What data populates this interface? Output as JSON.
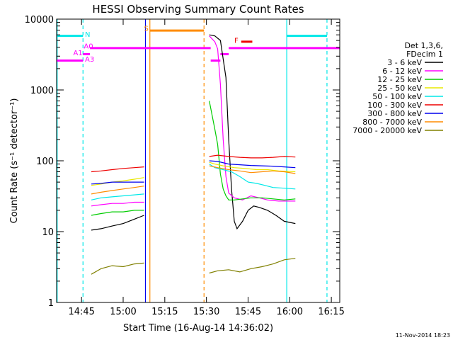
{
  "chart_data": {
    "type": "line",
    "title": "HESSI Observing Summary Count Rates",
    "xlabel": "Start Time (16-Aug-14 14:36:02)",
    "ylabel": "Count Rate (s⁻¹ detector⁻¹)",
    "footer_date": "11-Nov-2014 18:23",
    "x_unit": "minutes after 14:36:02",
    "xlim": [
      0,
      102
    ],
    "ylim": [
      1,
      10000
    ],
    "y_scale": "log",
    "grid": false,
    "legend_position": "right",
    "legend_header": [
      "Det 1,3,6,",
      "FDecim 1"
    ],
    "x_ticks": [
      {
        "label": "14:45",
        "value": 8.97
      },
      {
        "label": "15:00",
        "value": 23.97
      },
      {
        "label": "15:15",
        "value": 38.97
      },
      {
        "label": "15:30",
        "value": 53.97
      },
      {
        "label": "15:45",
        "value": 68.97
      },
      {
        "label": "16:00",
        "value": 83.97
      },
      {
        "label": "16:15",
        "value": 98.97
      }
    ],
    "y_ticks": [
      {
        "label": "1",
        "value": 1
      },
      {
        "label": "10",
        "value": 10
      },
      {
        "label": "100",
        "value": 100
      },
      {
        "label": "1000",
        "value": 1000
      },
      {
        "label": "10000",
        "value": 10000
      }
    ],
    "series": [
      {
        "name": "3 - 6 keV",
        "color": "#000000",
        "values": [
          [
            12.5,
            10.5
          ],
          [
            16,
            11
          ],
          [
            20,
            12
          ],
          [
            24,
            13
          ],
          [
            28,
            15
          ],
          [
            31.5,
            17
          ],
          [
            55,
            6000
          ],
          [
            57,
            5800
          ],
          [
            59,
            5000
          ],
          [
            61,
            1500
          ],
          [
            62,
            200
          ],
          [
            63,
            40
          ],
          [
            64,
            14
          ],
          [
            65,
            11
          ],
          [
            67,
            14
          ],
          [
            69,
            20
          ],
          [
            71,
            23
          ],
          [
            73,
            22
          ],
          [
            76,
            20
          ],
          [
            79,
            17
          ],
          [
            82,
            14
          ],
          [
            86,
            13
          ]
        ]
      },
      {
        "name": "6 - 12 keV",
        "color": "#ff00ff",
        "values": [
          [
            12.5,
            23
          ],
          [
            16,
            24
          ],
          [
            20,
            25
          ],
          [
            24,
            25
          ],
          [
            28,
            26
          ],
          [
            31.5,
            26
          ],
          [
            55,
            5800
          ],
          [
            57,
            4800
          ],
          [
            58,
            3800
          ],
          [
            59,
            1200
          ],
          [
            60,
            200
          ],
          [
            61,
            60
          ],
          [
            62,
            35
          ],
          [
            64,
            30
          ],
          [
            67,
            28
          ],
          [
            70,
            32
          ],
          [
            73,
            30
          ],
          [
            76,
            28
          ],
          [
            80,
            27
          ],
          [
            86,
            27
          ]
        ]
      },
      {
        "name": "12 - 25 keV",
        "color": "#00cc00",
        "values": [
          [
            12.5,
            17
          ],
          [
            16,
            18
          ],
          [
            20,
            19
          ],
          [
            24,
            19
          ],
          [
            28,
            20
          ],
          [
            31.5,
            20
          ],
          [
            55,
            700
          ],
          [
            57,
            280
          ],
          [
            58,
            170
          ],
          [
            59,
            65
          ],
          [
            60,
            40
          ],
          [
            61,
            32
          ],
          [
            62,
            28
          ],
          [
            64,
            28
          ],
          [
            67,
            29
          ],
          [
            70,
            30
          ],
          [
            74,
            30
          ],
          [
            78,
            29
          ],
          [
            82,
            28
          ],
          [
            86,
            29
          ]
        ]
      },
      {
        "name": "25 - 50 keV",
        "color": "#e8e800",
        "values": [
          [
            12.5,
            45
          ],
          [
            16,
            47
          ],
          [
            20,
            50
          ],
          [
            24,
            52
          ],
          [
            28,
            55
          ],
          [
            31.5,
            58
          ],
          [
            55,
            95
          ],
          [
            57,
            90
          ],
          [
            60,
            85
          ],
          [
            64,
            80
          ],
          [
            68,
            78
          ],
          [
            72,
            75
          ],
          [
            76,
            75
          ],
          [
            80,
            72
          ],
          [
            86,
            70
          ]
        ]
      },
      {
        "name": "50 - 100 keV",
        "color": "#00e8e8",
        "values": [
          [
            12.5,
            28
          ],
          [
            16,
            30
          ],
          [
            20,
            31
          ],
          [
            24,
            32
          ],
          [
            28,
            33
          ],
          [
            31.5,
            34
          ],
          [
            55,
            90
          ],
          [
            57,
            80
          ],
          [
            60,
            75
          ],
          [
            63,
            70
          ],
          [
            66,
            60
          ],
          [
            69,
            50
          ],
          [
            72,
            48
          ],
          [
            75,
            45
          ],
          [
            78,
            42
          ],
          [
            82,
            41
          ],
          [
            86,
            40
          ]
        ]
      },
      {
        "name": "100 - 300 keV",
        "color": "#ee0000",
        "values": [
          [
            12.5,
            70
          ],
          [
            16,
            72
          ],
          [
            20,
            75
          ],
          [
            24,
            78
          ],
          [
            28,
            80
          ],
          [
            31.5,
            82
          ],
          [
            55,
            115
          ],
          [
            58,
            120
          ],
          [
            62,
            115
          ],
          [
            66,
            112
          ],
          [
            70,
            110
          ],
          [
            74,
            110
          ],
          [
            78,
            112
          ],
          [
            82,
            115
          ],
          [
            86,
            113
          ]
        ]
      },
      {
        "name": "300 - 800 keV",
        "color": "#0000ee",
        "values": [
          [
            12.5,
            47
          ],
          [
            16,
            48
          ],
          [
            20,
            50
          ],
          [
            24,
            50
          ],
          [
            28,
            50
          ],
          [
            31.5,
            50
          ],
          [
            55,
            100
          ],
          [
            58,
            98
          ],
          [
            62,
            90
          ],
          [
            66,
            88
          ],
          [
            70,
            86
          ],
          [
            74,
            85
          ],
          [
            78,
            84
          ],
          [
            82,
            82
          ],
          [
            86,
            80
          ]
        ]
      },
      {
        "name": "800 - 7000 keV",
        "color": "#ff8c00",
        "values": [
          [
            12.5,
            34
          ],
          [
            16,
            36
          ],
          [
            20,
            38
          ],
          [
            24,
            40
          ],
          [
            28,
            42
          ],
          [
            31.5,
            44
          ],
          [
            55,
            85
          ],
          [
            58,
            80
          ],
          [
            62,
            75
          ],
          [
            66,
            72
          ],
          [
            70,
            68
          ],
          [
            74,
            70
          ],
          [
            78,
            72
          ],
          [
            82,
            70
          ],
          [
            86,
            66
          ]
        ]
      },
      {
        "name": "7000 - 20000 keV",
        "color": "#808000",
        "values": [
          [
            12.5,
            2.5
          ],
          [
            16,
            3
          ],
          [
            20,
            3.3
          ],
          [
            24,
            3.2
          ],
          [
            28,
            3.5
          ],
          [
            31.5,
            3.6
          ],
          [
            55,
            2.6
          ],
          [
            58,
            2.8
          ],
          [
            62,
            2.9
          ],
          [
            66,
            2.7
          ],
          [
            70,
            3
          ],
          [
            74,
            3.2
          ],
          [
            78,
            3.5
          ],
          [
            82,
            4
          ],
          [
            86,
            4.2
          ]
        ]
      }
    ],
    "vertical_lines": [
      {
        "x": 0.2,
        "color": "#00e8e8",
        "style": "solid"
      },
      {
        "x": 9.5,
        "color": "#00e8e8",
        "style": "dashed"
      },
      {
        "x": 32.0,
        "color": "#0000ee",
        "style": "solid"
      },
      {
        "x": 33.6,
        "color": "#ff8c00",
        "style": "solid"
      },
      {
        "x": 53.1,
        "color": "#ff8c00",
        "style": "dashed"
      },
      {
        "x": 82.9,
        "color": "#00e8e8",
        "style": "solid"
      },
      {
        "x": 97.4,
        "color": "#00e8e8",
        "style": "dashed"
      }
    ],
    "flag_segments": [
      {
        "x": [
          0,
          9.5
        ],
        "y": 5800,
        "color": "#00e8e8"
      },
      {
        "x": [
          82.9,
          97.4
        ],
        "y": 5800,
        "color": "#00e8e8"
      },
      {
        "x": [
          33.6,
          53.1
        ],
        "y": 6900,
        "color": "#ff8c00"
      },
      {
        "x": [
          0,
          9.5
        ],
        "y": 2600,
        "color": "#ff00ff"
      },
      {
        "x": [
          9.5,
          12.0
        ],
        "y": 3200,
        "color": "#ff00ff"
      },
      {
        "x": [
          12.0,
          55.5
        ],
        "y": 3900,
        "color": "#ff00ff"
      },
      {
        "x": [
          55.5,
          59.0
        ],
        "y": 2600,
        "color": "#ff00ff"
      },
      {
        "x": [
          59.0,
          62.0
        ],
        "y": 3200,
        "color": "#ff00ff"
      },
      {
        "x": [
          62.0,
          102.0
        ],
        "y": 3900,
        "color": "#ff00ff"
      },
      {
        "x": [
          66.5,
          70.5
        ],
        "y": 4800,
        "color": "#ee0000"
      }
    ],
    "annotations": [
      {
        "text": "N",
        "x": 10.2,
        "y": 5600,
        "color": "#00e8e8"
      },
      {
        "text": "S",
        "x": 31.5,
        "y": 6800,
        "color": "#ff8c00"
      },
      {
        "text": "F",
        "x": 64.0,
        "y": 4600,
        "color": "#ee0000"
      },
      {
        "text": "A0",
        "x": 9.8,
        "y": 3850,
        "color": "#ff00ff"
      },
      {
        "text": "A1",
        "x": 6.0,
        "y": 3100,
        "color": "#ff00ff"
      },
      {
        "text": "A3",
        "x": 10.2,
        "y": 2500,
        "color": "#ff00ff"
      }
    ]
  }
}
